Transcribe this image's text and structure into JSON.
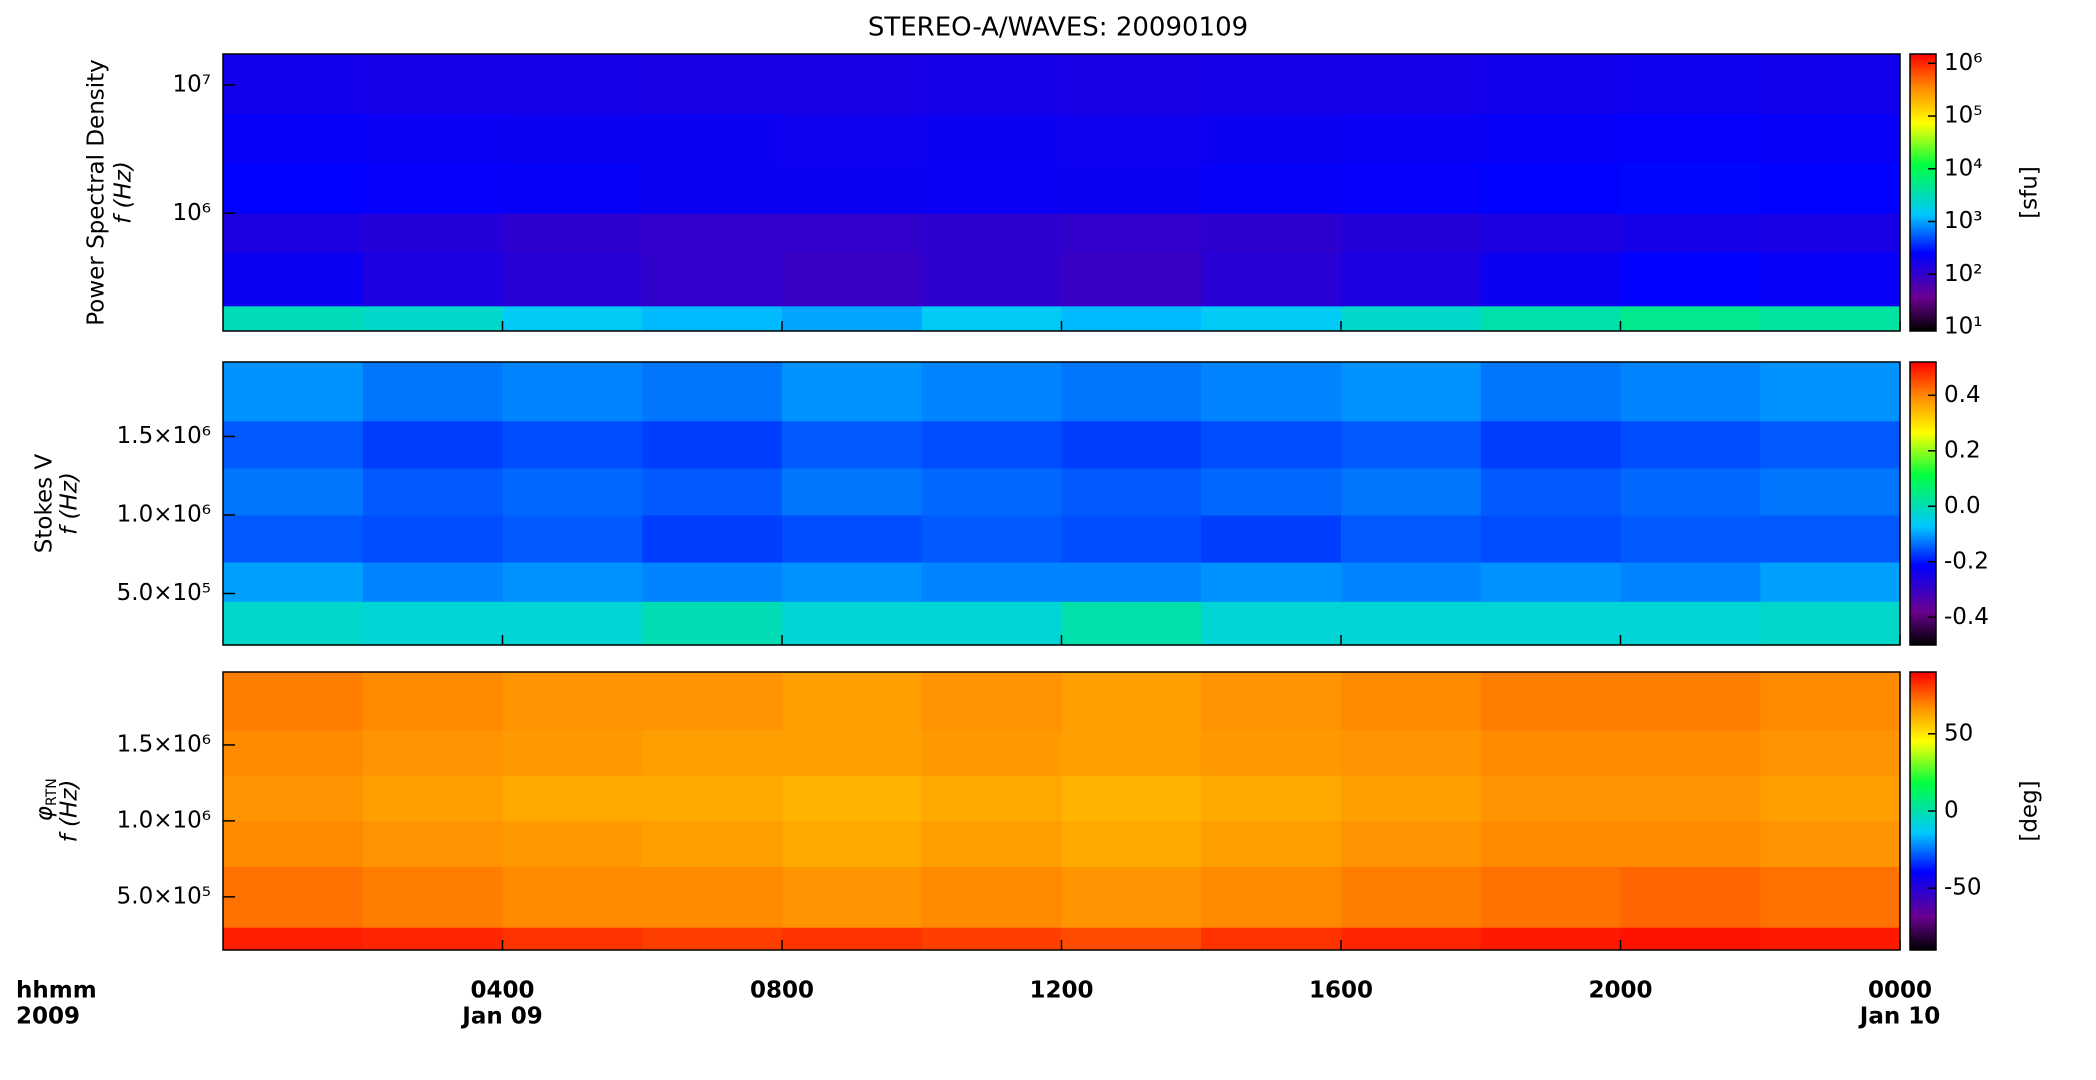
{
  "chart_data": [
    {
      "type": "heatmap",
      "title": "STEREO-A/WAVES: 20090109",
      "ylabel_top": "Power Spectral Density",
      "ylabel": "f (Hz)",
      "xlim": [
        0,
        24
      ],
      "ylog": true,
      "ylim": [
        121000,
        17400000
      ],
      "yticks": [
        {
          "value": 1000000,
          "label": "10⁶"
        },
        {
          "value": 10000000,
          "label": "10⁷"
        }
      ],
      "x_edges": [
        0,
        2,
        4,
        6,
        8,
        10,
        12,
        14,
        16,
        18,
        20,
        22,
        24
      ],
      "y_edges": [
        121000,
        190000,
        500000,
        1000000,
        2500000,
        6000000,
        17400000
      ],
      "z": [
        [
          3000,
          2500,
          1500,
          1200,
          1000,
          1500,
          1200,
          1500,
          2500,
          3500,
          5000,
          4000
        ],
        [
          200,
          150,
          120,
          100,
          90,
          110,
          90,
          120,
          150,
          200,
          250,
          220
        ],
        [
          150,
          130,
          110,
          100,
          100,
          110,
          100,
          110,
          130,
          150,
          170,
          160
        ],
        [
          250,
          230,
          220,
          200,
          200,
          210,
          200,
          220,
          230,
          250,
          260,
          250
        ],
        [
          220,
          210,
          200,
          200,
          190,
          200,
          190,
          200,
          210,
          220,
          230,
          220
        ],
        [
          180,
          170,
          170,
          160,
          160,
          170,
          160,
          170,
          170,
          180,
          190,
          180
        ]
      ],
      "colormap": "rainbow",
      "clog": true,
      "clim": [
        8.4,
        1500000
      ],
      "cticks": [
        {
          "value": 10,
          "label": "10¹"
        },
        {
          "value": 100,
          "label": "10²"
        },
        {
          "value": 1000,
          "label": "10³"
        },
        {
          "value": 10000,
          "label": "10⁴"
        },
        {
          "value": 100000,
          "label": "10⁵"
        },
        {
          "value": 1000000,
          "label": "10⁶"
        }
      ],
      "clabel": "[sfu]"
    },
    {
      "type": "heatmap",
      "ylabel_top": "Stokes V",
      "ylabel": "f (Hz)",
      "xlim": [
        0,
        24
      ],
      "ylog": false,
      "ylim": [
        172000,
        1974000
      ],
      "yticks": [
        {
          "value": 500000,
          "label": "5.0×10⁵"
        },
        {
          "value": 1000000,
          "label": "1.0×10⁶"
        },
        {
          "value": 1500000,
          "label": "1.5×10⁶"
        }
      ],
      "x_edges": [
        0,
        2,
        4,
        6,
        8,
        10,
        12,
        14,
        16,
        18,
        20,
        22,
        24
      ],
      "y_edges": [
        172000,
        450000,
        700000,
        1000000,
        1300000,
        1600000,
        1974000
      ],
      "z": [
        [
          -0.02,
          -0.03,
          -0.03,
          0.0,
          -0.03,
          -0.03,
          0.01,
          -0.03,
          -0.03,
          -0.03,
          -0.03,
          -0.02
        ],
        [
          -0.1,
          -0.12,
          -0.11,
          -0.12,
          -0.11,
          -0.12,
          -0.12,
          -0.11,
          -0.12,
          -0.11,
          -0.12,
          -0.1
        ],
        [
          -0.15,
          -0.16,
          -0.15,
          -0.17,
          -0.16,
          -0.15,
          -0.16,
          -0.17,
          -0.15,
          -0.16,
          -0.15,
          -0.15
        ],
        [
          -0.13,
          -0.15,
          -0.14,
          -0.15,
          -0.13,
          -0.14,
          -0.15,
          -0.14,
          -0.13,
          -0.15,
          -0.14,
          -0.13
        ],
        [
          -0.15,
          -0.17,
          -0.16,
          -0.17,
          -0.15,
          -0.16,
          -0.17,
          -0.16,
          -0.15,
          -0.17,
          -0.16,
          -0.15
        ],
        [
          -0.11,
          -0.13,
          -0.12,
          -0.13,
          -0.11,
          -0.12,
          -0.13,
          -0.12,
          -0.11,
          -0.13,
          -0.12,
          -0.11
        ]
      ],
      "colormap": "rainbow",
      "clog": false,
      "clim": [
        -0.5,
        0.52
      ],
      "cticks": [
        -0.4,
        -0.2,
        {
          "value": 0,
          "label": "0.0"
        },
        0.2,
        0.4
      ]
    },
    {
      "type": "heatmap",
      "ylabel_symbol": "φ",
      "ylabel_subscript": "RTN",
      "ylabel": "f (Hz)",
      "xlim": [
        0,
        24
      ],
      "ylog": false,
      "ylim": [
        150000,
        1980000
      ],
      "yticks": [
        {
          "value": 500000,
          "label": "5.0×10⁵"
        },
        {
          "value": 1000000,
          "label": "1.0×10⁶"
        },
        {
          "value": 1500000,
          "label": "1.5×10⁶"
        }
      ],
      "x_edges": [
        0,
        2,
        4,
        6,
        8,
        10,
        12,
        14,
        16,
        18,
        20,
        22,
        24
      ],
      "y_edges": [
        150000,
        300000,
        700000,
        1000000,
        1300000,
        1600000,
        1980000
      ],
      "z": [
        [
          85,
          84,
          82,
          80,
          82,
          80,
          78,
          82,
          84,
          86,
          87,
          86
        ],
        [
          72,
          70,
          68,
          68,
          66,
          68,
          66,
          68,
          70,
          72,
          74,
          72
        ],
        [
          68,
          66,
          65,
          64,
          62,
          64,
          62,
          64,
          66,
          68,
          68,
          66
        ],
        [
          66,
          64,
          62,
          62,
          60,
          62,
          60,
          62,
          64,
          66,
          66,
          64
        ],
        [
          68,
          66,
          65,
          64,
          64,
          65,
          64,
          65,
          66,
          68,
          68,
          66
        ],
        [
          70,
          68,
          66,
          66,
          64,
          66,
          64,
          66,
          68,
          70,
          70,
          68
        ]
      ],
      "colormap": "rainbow",
      "clog": false,
      "clim": [
        -90,
        90
      ],
      "cticks": [
        -50,
        0,
        50
      ],
      "clabel": "[deg]",
      "xticks": [
        {
          "value": 4,
          "label": "0400"
        },
        {
          "value": 8,
          "label": "0800"
        },
        {
          "value": 12,
          "label": "1200"
        },
        {
          "value": 16,
          "label": "1600"
        },
        {
          "value": 20,
          "label": "2000"
        },
        {
          "value": 24,
          "label": "0000"
        }
      ],
      "xtick_dates": [
        {
          "value": 4,
          "label": "Jan 09"
        },
        {
          "value": 24,
          "label": "Jan 10"
        }
      ],
      "x_unit": "hhmm",
      "x_year": "2009"
    }
  ]
}
